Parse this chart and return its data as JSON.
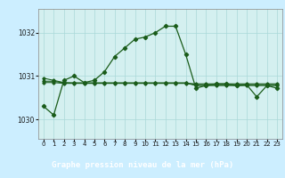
{
  "title": "Graphe pression niveau de la mer (hPa)",
  "bg_color": "#cceeff",
  "plot_bg": "#d4f0f0",
  "footer_bg": "#2d5a1b",
  "footer_text_color": "#ffffff",
  "line_color": "#1a5c1a",
  "grid_color": "#aad8d8",
  "xlim": [
    -0.5,
    23.5
  ],
  "ylim": [
    1029.55,
    1032.55
  ],
  "yticks": [
    1030,
    1031,
    1032
  ],
  "xtick_labels": [
    "0",
    "1",
    "2",
    "3",
    "4",
    "5",
    "6",
    "7",
    "8",
    "9",
    "10",
    "11",
    "12",
    "13",
    "14",
    "15",
    "16",
    "17",
    "18",
    "19",
    "20",
    "21",
    "22",
    "23"
  ],
  "s1": [
    1030.3,
    1030.1,
    1030.9,
    1031.0,
    1030.85,
    1030.9,
    1031.1,
    1031.45,
    1031.65,
    1031.85,
    1031.9,
    1032.0,
    1032.15,
    1032.15,
    1031.5,
    1030.72,
    1030.78,
    1030.82,
    1030.82,
    1030.78,
    1030.8,
    1030.52,
    1030.78,
    1030.72
  ],
  "s2": [
    1030.95,
    1030.9,
    1030.85,
    1030.84,
    1030.84,
    1030.84,
    1030.84,
    1030.84,
    1030.84,
    1030.84,
    1030.84,
    1030.84,
    1030.84,
    1030.84,
    1030.84,
    1030.78,
    1030.78,
    1030.78,
    1030.78,
    1030.78,
    1030.78,
    1030.78,
    1030.78,
    1030.78
  ],
  "s3": [
    1030.88,
    1030.88,
    1030.84,
    1030.84,
    1030.84,
    1030.84,
    1030.84,
    1030.84,
    1030.84,
    1030.84,
    1030.84,
    1030.84,
    1030.84,
    1030.84,
    1030.84,
    1030.8,
    1030.8,
    1030.8,
    1030.8,
    1030.8,
    1030.8,
    1030.8,
    1030.8,
    1030.8
  ],
  "s4": [
    1030.85,
    1030.85,
    1030.83,
    1030.83,
    1030.83,
    1030.83,
    1030.83,
    1030.83,
    1030.83,
    1030.83,
    1030.83,
    1030.83,
    1030.83,
    1030.83,
    1030.83,
    1030.82,
    1030.82,
    1030.82,
    1030.82,
    1030.82,
    1030.82,
    1030.82,
    1030.82,
    1030.82
  ]
}
